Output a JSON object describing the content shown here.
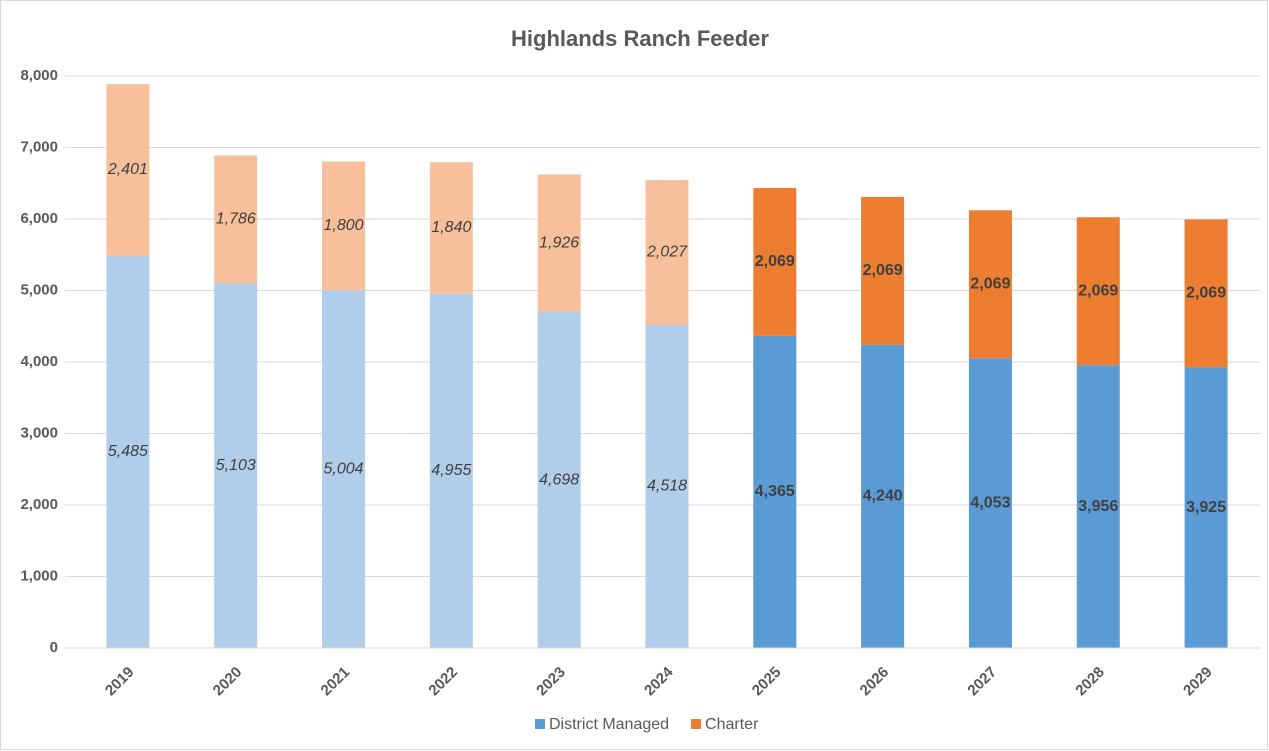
{
  "chart_data": {
    "type": "stacked_bar",
    "title": "Highlands Ranch Feeder",
    "categories": [
      "2019",
      "2020",
      "2021",
      "2022",
      "2023",
      "2024",
      "2025",
      "2026",
      "2027",
      "2028",
      "2029"
    ],
    "series": [
      {
        "name": "District Managed",
        "color": "#5b9bd5",
        "colors": [
          "#b0cde9",
          "#b0cde9",
          "#b0cde9",
          "#b0cde9",
          "#b0cde9",
          "#b0cde9",
          "#5b9bd5",
          "#5b9bd5",
          "#5b9bd5",
          "#5b9bd5",
          "#5b9bd5"
        ],
        "values": [
          5485,
          5103,
          5004,
          4955,
          4698,
          4518,
          4365,
          4240,
          4053,
          3956,
          3925
        ],
        "value_labels": [
          "5,485",
          "5,103",
          "5,004",
          "4,955",
          "4,698",
          "4,518",
          "4,365",
          "4,240",
          "4,053",
          "3,956",
          "3,925"
        ]
      },
      {
        "name": "Charter",
        "color": "#ed7d31",
        "colors": [
          "#f8c09a",
          "#f8c09a",
          "#f8c09a",
          "#f8c09a",
          "#f8c09a",
          "#f8c09a",
          "#ed7d31",
          "#ed7d31",
          "#ed7d31",
          "#ed7d31",
          "#ed7d31"
        ],
        "values": [
          2401,
          1786,
          1800,
          1840,
          1926,
          2027,
          2069,
          2069,
          2069,
          2069,
          2069
        ],
        "value_labels": [
          "2,401",
          "1,786",
          "1,800",
          "1,840",
          "1,926",
          "2,027",
          "2,069",
          "2,069",
          "2,069",
          "2,069",
          "2,069"
        ]
      }
    ],
    "ylim": [
      0,
      8000
    ],
    "yticks": [
      0,
      {
        "value": 1000,
        "label": "1,000"
      },
      {
        "value": 2000,
        "label": "2,000"
      },
      {
        "value": 3000,
        "label": "3,000"
      },
      {
        "value": 4000,
        "label": "4,000"
      },
      {
        "value": 5000,
        "label": "5,000"
      },
      {
        "value": 6000,
        "label": "6,000"
      },
      {
        "value": 7000,
        "label": "7,000"
      },
      {
        "value": 8000,
        "label": "8,000"
      }
    ],
    "grid": true,
    "legend": "bottom"
  }
}
